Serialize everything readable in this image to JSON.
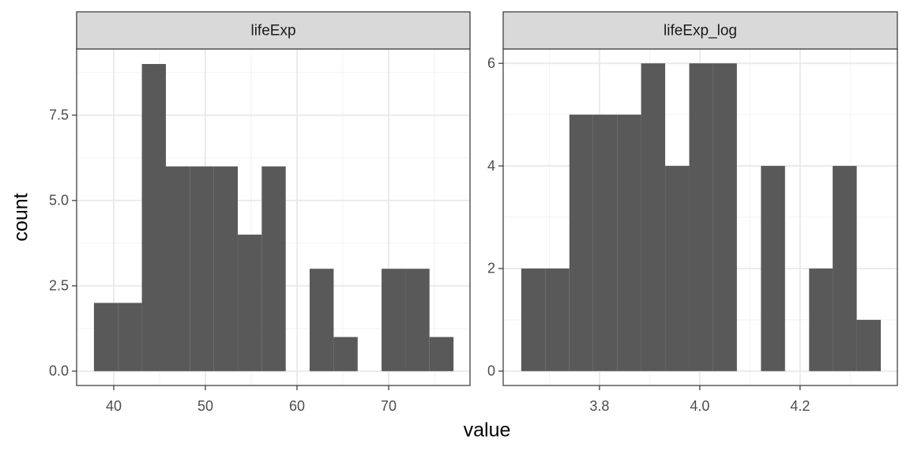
{
  "chart_data": [
    {
      "type": "histogram",
      "facet": "lifeExp",
      "xlabel": "value",
      "ylabel": "count",
      "bins": [
        37.84,
        40.46,
        43.07,
        45.69,
        48.3,
        50.92,
        53.54,
        56.15,
        58.77,
        61.38,
        64.0,
        66.62,
        69.23,
        71.85,
        74.46,
        77.08
      ],
      "values": [
        2,
        2,
        9,
        6,
        6,
        6,
        4,
        6,
        0,
        3,
        1,
        0,
        3,
        3,
        1
      ],
      "color": "#595959",
      "xlim": [
        35.95,
        78.88
      ],
      "xticks": [
        40,
        50,
        60,
        70
      ],
      "xminor": [
        45,
        55,
        65,
        75
      ],
      "ylim": [
        -0.42,
        9.44
      ],
      "yticks": [
        {
          "value": 0,
          "label": "0.0"
        },
        2.5,
        {
          "value": 5,
          "label": "5.0"
        },
        7.5
      ],
      "yminor": [
        1.25,
        3.75,
        6.25,
        8.75
      ],
      "grid": true
    },
    {
      "type": "histogram",
      "facet": "lifeExp_log",
      "bins": [
        3.644,
        3.692,
        3.74,
        3.787,
        3.835,
        3.883,
        3.931,
        3.979,
        4.026,
        4.074,
        4.122,
        4.17,
        4.218,
        4.265,
        4.313,
        4.361
      ],
      "values": [
        2,
        2,
        5,
        5,
        5,
        6,
        4,
        6,
        6,
        0,
        4,
        0,
        2,
        4,
        1
      ],
      "color": "#595959",
      "xlim": [
        3.608,
        4.394
      ],
      "xticks": [
        3.8,
        {
          "value": 4,
          "label": "4.0"
        },
        4.2
      ],
      "xminor": [
        3.7,
        3.9,
        4.1,
        4.3
      ],
      "ylim": [
        -0.28,
        6.28
      ],
      "yticks": [
        0,
        2,
        4,
        6
      ],
      "yminor": [
        1,
        3,
        5
      ],
      "grid": true
    }
  ]
}
